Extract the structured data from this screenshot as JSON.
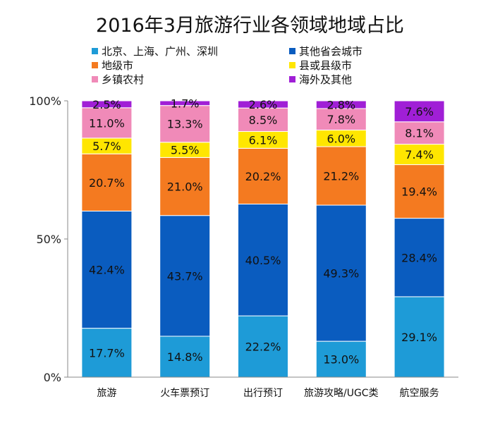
{
  "chart_data": {
    "type": "bar",
    "stacked": true,
    "title": "2016年3月旅游行业各领域地域占比",
    "categories": [
      "旅游",
      "火车票预订",
      "出行预订",
      "旅游攻略/UGC类",
      "航空服务"
    ],
    "ylim": [
      0,
      100
    ],
    "yticks": [
      "0%",
      "50%",
      "100%"
    ],
    "legend_position": "top",
    "series": [
      {
        "name": "北京、上海、广州、深圳",
        "color": "#1E9BD7",
        "values": [
          17.7,
          14.8,
          22.2,
          13.0,
          29.1
        ],
        "labels": [
          "17.7%",
          "14.8%",
          "22.2%",
          "13.0%",
          "29.1%"
        ]
      },
      {
        "name": "其他省会城市",
        "color": "#0A5CBF",
        "values": [
          42.4,
          43.7,
          40.5,
          49.3,
          28.4
        ],
        "labels": [
          "42.4%",
          "43.7%",
          "40.5%",
          "49.3%",
          "28.4%"
        ]
      },
      {
        "name": "地级市",
        "color": "#F47A20",
        "values": [
          20.7,
          21.0,
          20.2,
          21.2,
          19.4
        ],
        "labels": [
          "20.7%",
          "21.0%",
          "20.2%",
          "21.2%",
          "19.4%"
        ]
      },
      {
        "name": "县或县级市",
        "color": "#FFE600",
        "values": [
          5.7,
          5.5,
          6.1,
          6.0,
          7.4
        ],
        "labels": [
          "5.7%",
          "5.5%",
          "6.1%",
          "6.0%",
          "7.4%"
        ]
      },
      {
        "name": "乡镇农村",
        "color": "#F08AB8",
        "values": [
          11.0,
          13.3,
          8.5,
          7.8,
          8.1
        ],
        "labels": [
          "11.0%",
          "13.3%",
          "8.5%",
          "7.8%",
          "8.1%"
        ]
      },
      {
        "name": "海外及其他",
        "color": "#A01FD6",
        "values": [
          2.5,
          1.7,
          2.6,
          2.8,
          7.6
        ],
        "labels": [
          "2.5%",
          "1.7%",
          "2.6%",
          "2.8%",
          "7.6%"
        ]
      }
    ]
  }
}
